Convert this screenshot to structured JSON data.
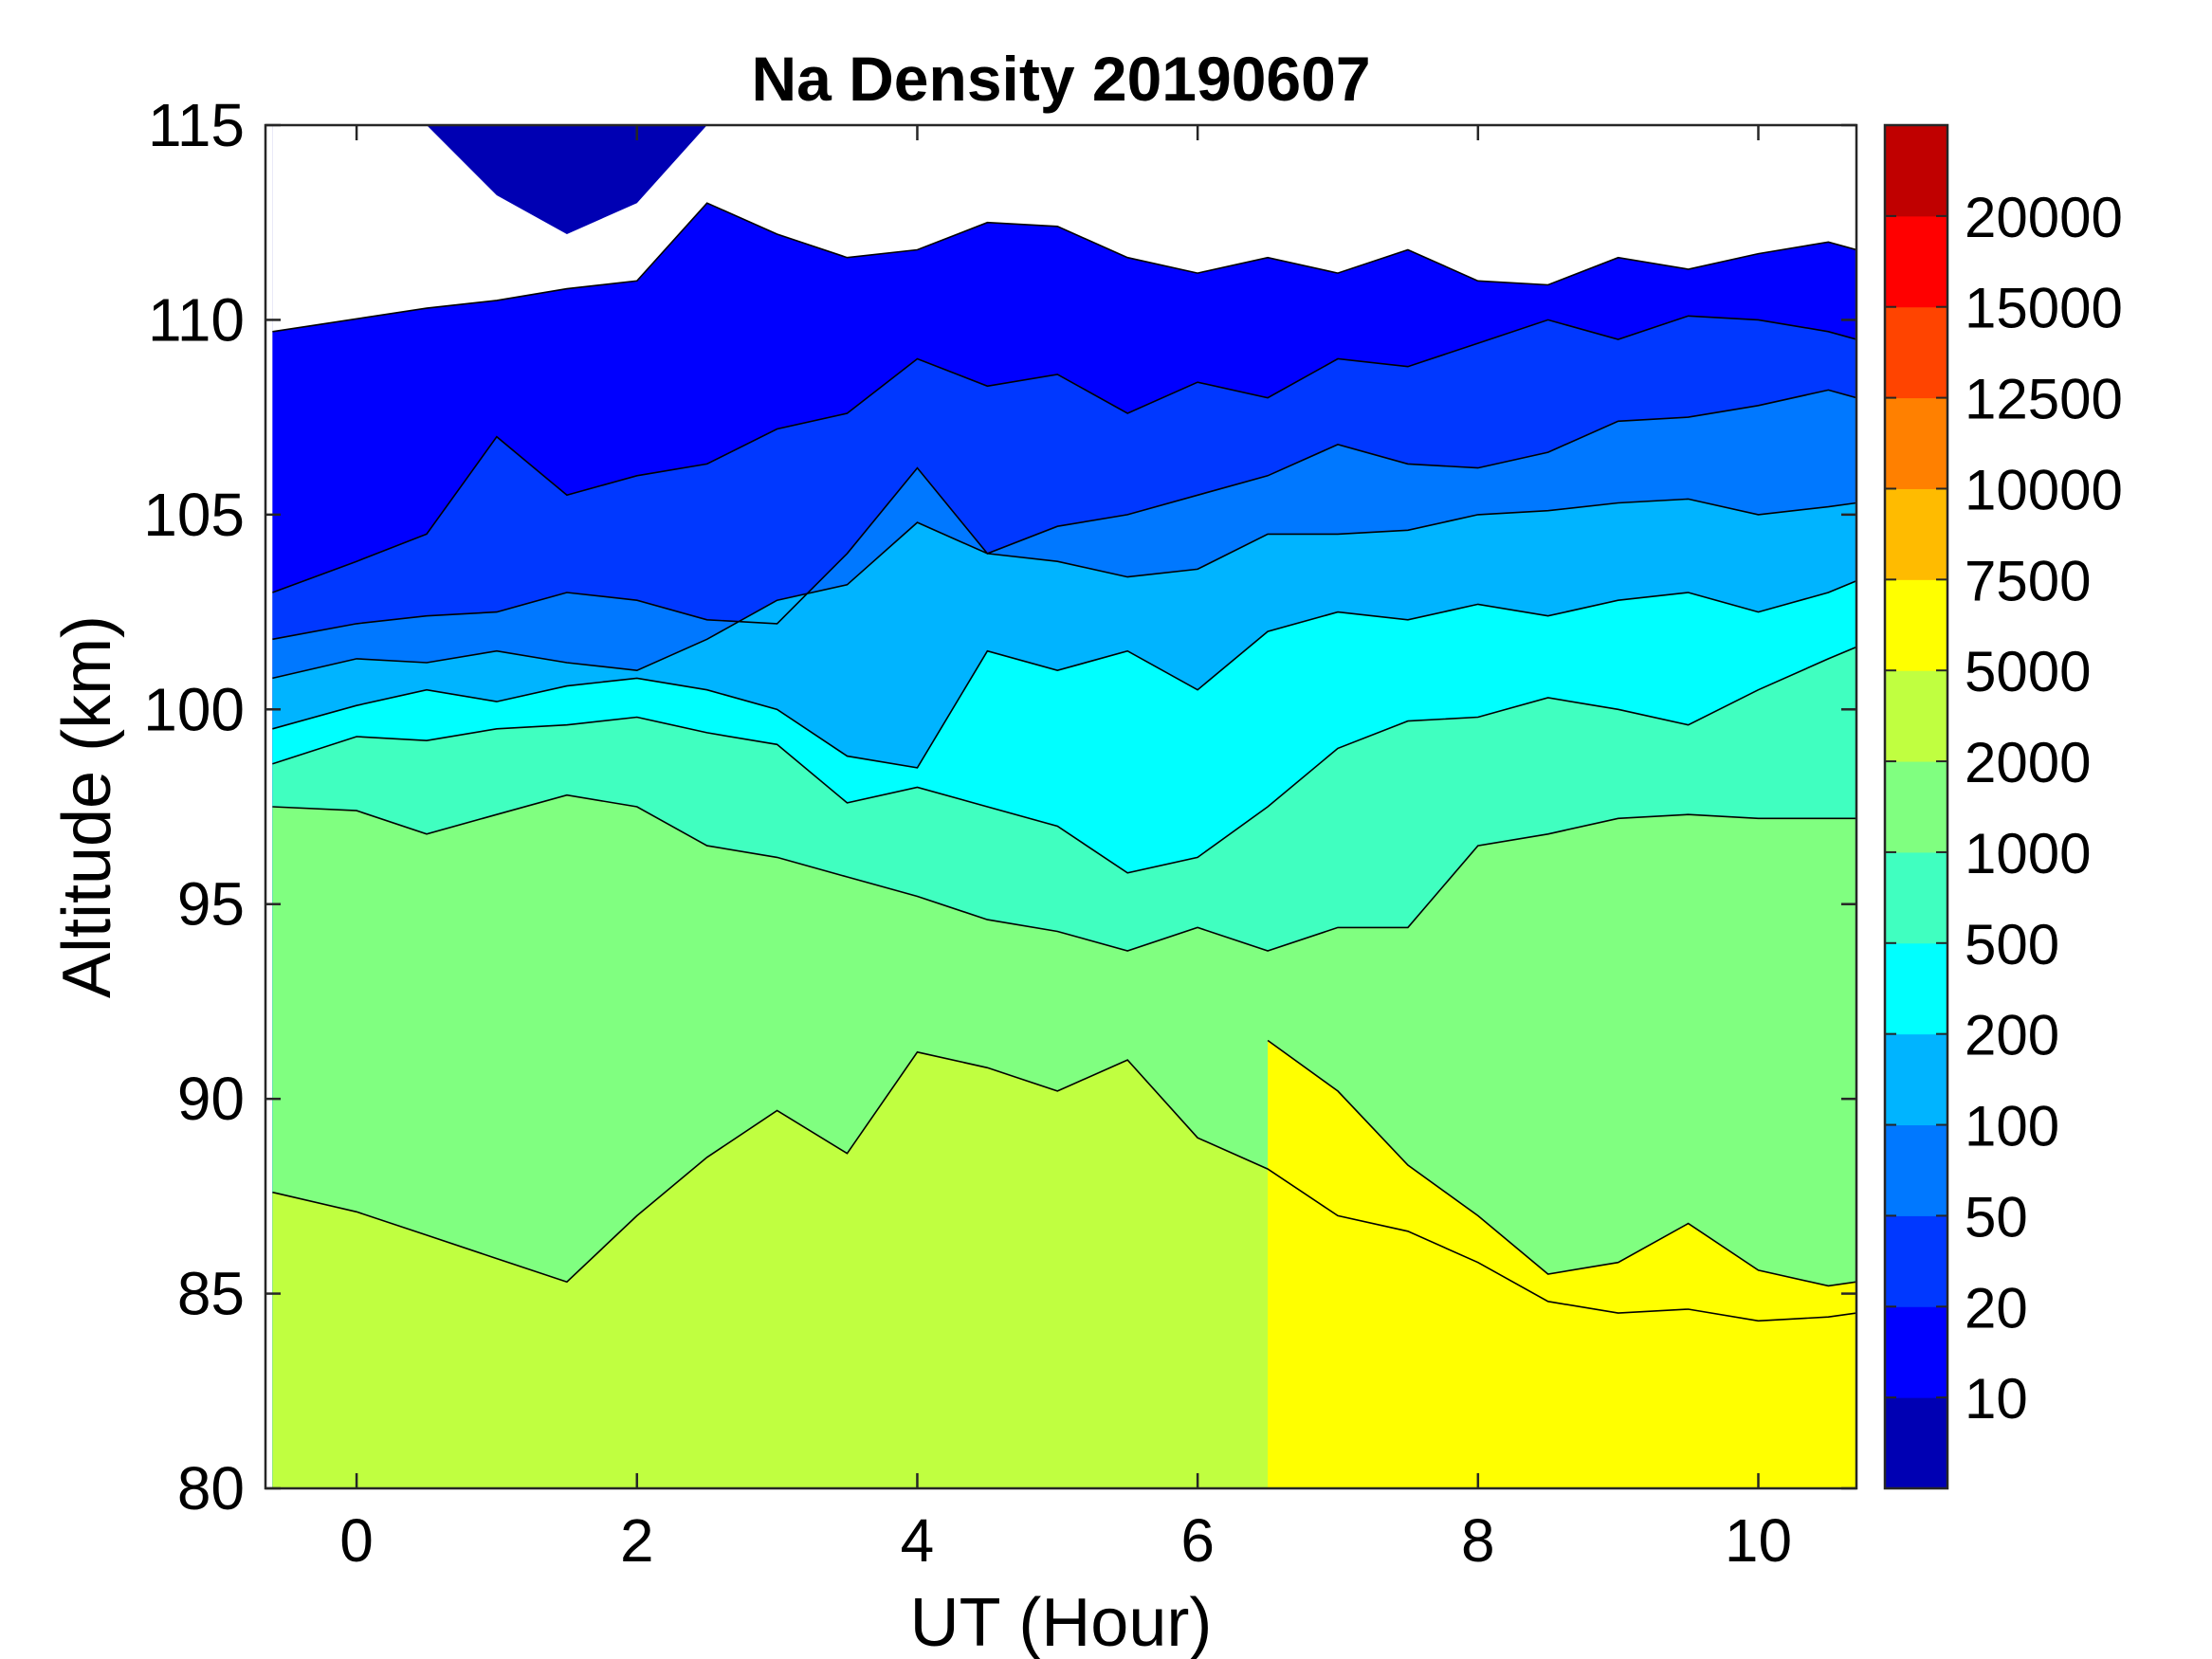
{
  "chart_data": {
    "type": "contour",
    "title": "Na Density 20190607",
    "xlabel": "UT (Hour)",
    "ylabel": "Altitude (km)",
    "xlim": [
      -0.65,
      10.7
    ],
    "ylim": [
      80,
      115
    ],
    "data_x_range": [
      -0.6,
      10.7
    ],
    "xticks": [
      0,
      2,
      4,
      6,
      8,
      10
    ],
    "yticks": [
      80,
      85,
      90,
      95,
      100,
      105,
      110,
      115
    ],
    "xtick_labels": [
      "0",
      "2",
      "4",
      "6",
      "8",
      "10"
    ],
    "ytick_labels": [
      "80",
      "85",
      "90",
      "95",
      "100",
      "105",
      "110",
      "115"
    ],
    "colorbar": {
      "location": "right",
      "labels": [
        "10",
        "20",
        "50",
        "100",
        "200",
        "500",
        "1000",
        "2000",
        "5000",
        "7500",
        "10000",
        "12500",
        "15000",
        "20000"
      ],
      "colors": [
        "#0000b3",
        "#0000ff",
        "#0038ff",
        "#0078ff",
        "#00b4ff",
        "#00ffff",
        "#40ffc0",
        "#80ff80",
        "#c0ff40",
        "#ffff00",
        "#ffbb00",
        "#ff8000",
        "#ff4400",
        "#ff0000",
        "#c00000"
      ]
    },
    "levels": [
      10,
      20,
      50,
      100,
      200,
      500,
      1000,
      2000,
      5000,
      7500,
      10000,
      12500,
      15000,
      20000
    ],
    "contours": [
      {
        "level_index": 0,
        "x": [
          -0.6,
          0.5,
          1.0,
          1.5,
          2.0,
          2.5,
          3.0,
          3.5,
          4.0,
          4.5,
          5.0,
          5.5,
          6.0,
          6.5,
          7.0,
          7.5,
          8.0,
          8.5,
          9.0,
          9.5,
          10.0,
          10.5,
          10.7
        ],
        "y": [
          115,
          115,
          113.2,
          112.2,
          113,
          115,
          115,
          115,
          115,
          115,
          115,
          115,
          115,
          115,
          115,
          115,
          115,
          115,
          115,
          115,
          115,
          115,
          115
        ]
      },
      {
        "level_index": 1,
        "x": [
          -0.6,
          0.5,
          1.0,
          1.5,
          2.0,
          2.5,
          3.0,
          3.5,
          4.0,
          4.5,
          5.0,
          5.5,
          6.0,
          6.5,
          7.0,
          7.5,
          8.0,
          8.5,
          9.0,
          9.5,
          10.0,
          10.5,
          10.7
        ],
        "y": [
          109.7,
          110.3,
          110.5,
          110.8,
          111.0,
          113.0,
          112.2,
          111.6,
          111.8,
          112.5,
          112.4,
          111.6,
          111.2,
          111.6,
          111.2,
          111.8,
          111.0,
          110.9,
          111.6,
          111.3,
          111.7,
          112.0,
          111.8
        ]
      },
      {
        "level_index": 2,
        "x": [
          -0.6,
          0.0,
          0.5,
          1.0,
          1.5,
          2.0,
          2.5,
          3.0,
          3.5,
          4.0,
          4.5,
          5.0,
          5.5,
          6.0,
          6.5,
          7.0,
          7.5,
          8.0,
          8.5,
          9.0,
          9.5,
          10.0,
          10.5,
          10.7
        ],
        "y": [
          103.0,
          103.8,
          104.5,
          107.0,
          105.5,
          106.0,
          106.3,
          107.2,
          107.6,
          109.0,
          108.3,
          108.6,
          107.6,
          108.4,
          108.0,
          109.0,
          108.8,
          109.4,
          110.0,
          109.5,
          110.1,
          110.0,
          109.7,
          109.5
        ]
      },
      {
        "level_index": 3,
        "x": [
          -0.6,
          0.0,
          0.5,
          1.0,
          1.5,
          2.0,
          2.5,
          3.0,
          3.5,
          4.0,
          4.5,
          5.0,
          5.5,
          6.0,
          6.5,
          7.0,
          7.5,
          8.0,
          8.5,
          9.0,
          9.5,
          10.0,
          10.5,
          10.7
        ],
        "y": [
          101.8,
          102.2,
          102.4,
          102.5,
          103.0,
          102.8,
          102.3,
          102.2,
          104.0,
          106.2,
          104.0,
          104.7,
          105.0,
          105.5,
          106.0,
          106.8,
          106.3,
          106.2,
          106.6,
          107.4,
          107.5,
          107.8,
          108.2,
          108.0
        ]
      },
      {
        "level_index": 4,
        "x": [
          -0.6,
          0.0,
          0.5,
          1.0,
          1.5,
          2.0,
          2.5,
          3.0,
          3.5,
          4.0,
          4.5,
          5.0,
          5.5,
          6.0,
          6.5,
          7.0,
          7.5,
          8.0,
          8.5,
          9.0,
          9.5,
          10.0,
          10.5,
          10.7
        ],
        "y": [
          100.8,
          101.3,
          101.2,
          101.5,
          101.2,
          101.0,
          101.8,
          102.8,
          103.2,
          104.8,
          104.0,
          103.8,
          103.4,
          103.6,
          104.5,
          104.5,
          104.6,
          105.0,
          105.1,
          105.3,
          105.4,
          105.0,
          105.2,
          105.3
        ]
      },
      {
        "level_index": 5,
        "x": [
          -0.6,
          0.0,
          0.5,
          1.0,
          1.5,
          2.0,
          2.5,
          3.0,
          3.5,
          4.0,
          4.5,
          5.0,
          5.5,
          6.0,
          6.5,
          7.0,
          7.5,
          8.0,
          8.5,
          9.0,
          9.5,
          10.0,
          10.5,
          10.7
        ],
        "y": [
          99.5,
          100.1,
          100.5,
          100.2,
          100.6,
          100.8,
          100.5,
          100.0,
          98.8,
          98.5,
          101.5,
          101.0,
          101.5,
          100.5,
          102.0,
          102.5,
          102.3,
          102.7,
          102.4,
          102.8,
          103.0,
          102.5,
          103.0,
          103.3
        ]
      },
      {
        "level_index": 6,
        "x": [
          -0.6,
          0.0,
          0.5,
          1.0,
          1.5,
          2.0,
          2.5,
          3.0,
          3.5,
          4.0,
          4.5,
          5.0,
          5.5,
          6.0,
          6.5,
          7.0,
          7.5,
          8.0,
          8.5,
          9.0,
          9.5,
          10.0,
          10.5,
          10.7
        ],
        "y": [
          98.6,
          99.3,
          99.2,
          99.5,
          99.6,
          99.8,
          99.4,
          99.1,
          97.6,
          98.0,
          97.5,
          97.0,
          95.8,
          96.2,
          97.5,
          99.0,
          99.7,
          99.8,
          100.3,
          100.0,
          99.6,
          100.5,
          101.3,
          101.6
        ]
      },
      {
        "level_index": 7,
        "x": [
          -0.6,
          0.0,
          0.5,
          1.0,
          1.5,
          2.0,
          2.5,
          3.0,
          3.5,
          4.0,
          4.5,
          5.0,
          5.5,
          6.0,
          6.5,
          7.0,
          7.5,
          8.0,
          8.5,
          9.0,
          9.5,
          10.0,
          10.5,
          10.7
        ],
        "y": [
          97.5,
          97.4,
          96.8,
          97.3,
          97.8,
          97.5,
          96.5,
          96.2,
          95.7,
          95.2,
          94.6,
          94.3,
          93.8,
          94.4,
          93.8,
          94.4,
          94.4,
          96.5,
          96.8,
          97.2,
          97.3,
          97.2,
          97.2,
          97.2
        ]
      },
      {
        "level_index": 8,
        "x": [
          -0.6,
          0.0,
          0.5,
          1.0,
          1.5,
          2.0,
          2.5,
          3.0,
          3.5,
          4.0,
          4.5,
          5.0,
          5.5,
          6.0,
          6.5,
          7.0,
          7.5,
          8.0,
          8.5,
          9.0,
          9.5,
          10.0,
          10.5,
          10.7
        ],
        "y": [
          87.6,
          87.1,
          86.5,
          85.9,
          85.3,
          87.0,
          88.5,
          89.7,
          88.6,
          91.2,
          90.8,
          90.2,
          91.0,
          89.0,
          88.2,
          87.0,
          86.6,
          85.8,
          84.8,
          84.5,
          84.6,
          84.3,
          84.4,
          84.5
        ]
      },
      {
        "level_index": 9,
        "x": [
          6.5,
          7.0,
          7.5,
          8.0,
          8.5,
          9.0,
          9.5,
          10.0,
          10.5,
          10.7
        ],
        "y": [
          91.5,
          90.2,
          88.3,
          87.0,
          85.5,
          85.8,
          86.8,
          85.6,
          85.2,
          85.3
        ]
      }
    ]
  }
}
